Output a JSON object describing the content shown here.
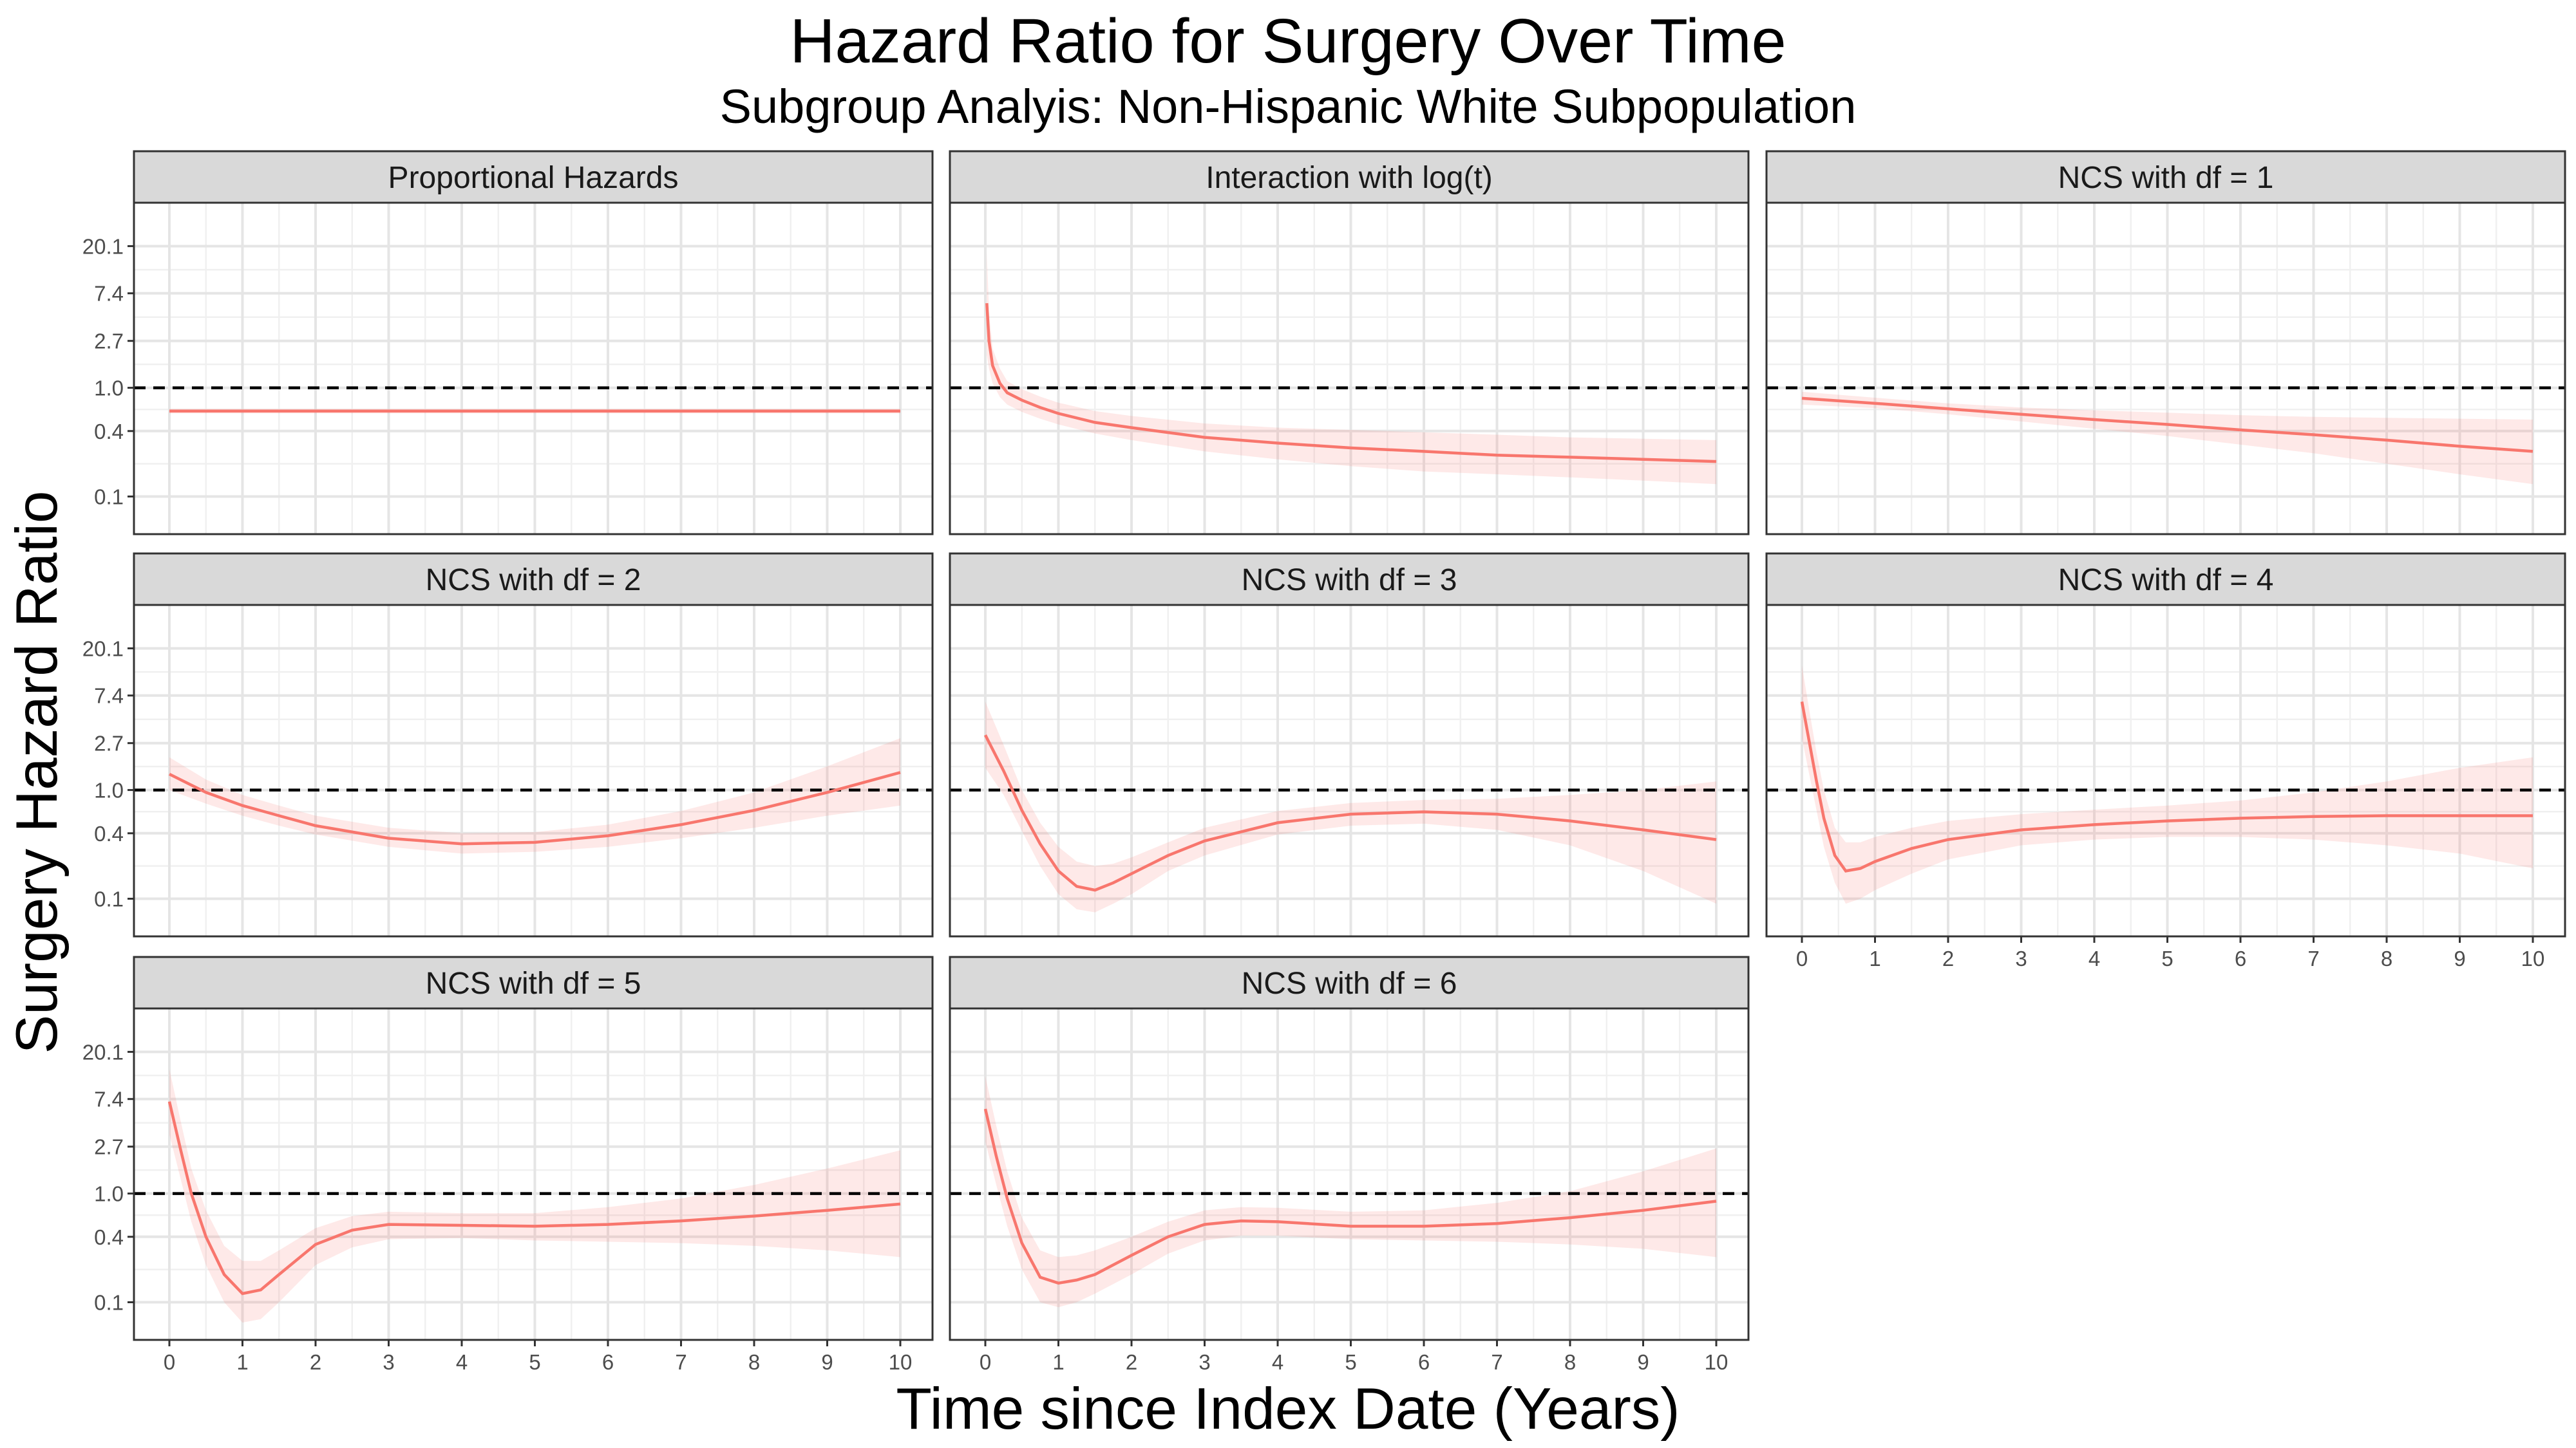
{
  "colors": {
    "curve": "#f8766d",
    "band": "#f8766d",
    "strip_fill": "#d9d9d9",
    "reference_line": "#000000",
    "grid": "#ebebeb"
  },
  "chart_data": {
    "type": "line",
    "title": "Hazard Ratio for Surgery Over Time",
    "subtitle": "Subgroup Analyis: Non-Hispanic White Subpopulation",
    "xlabel": "Time since Index Date (Years)",
    "ylabel": "Surgery Hazard Ratio",
    "xlim": [
      0,
      10
    ],
    "x_ticks": [
      0,
      1,
      2,
      3,
      4,
      5,
      6,
      7,
      8,
      9,
      10
    ],
    "y_scale": "log",
    "y_ticks": [
      0.1,
      0.4,
      1.0,
      2.7,
      7.4,
      20.1
    ],
    "y_tick_labels": [
      "0.1",
      "0.4",
      "1.0",
      "2.7",
      "7.4",
      "20.1"
    ],
    "reference_line": {
      "y": 1.0,
      "style": "dashed"
    },
    "grid": true,
    "legend": "none",
    "panels": [
      {
        "label": "Proportional Hazards",
        "x": [
          0,
          10
        ],
        "y": [
          0.61,
          0.61
        ],
        "lower": [
          0.58,
          0.58
        ],
        "upper": [
          0.64,
          0.64
        ]
      },
      {
        "label": "Interaction with log(t)",
        "x": [
          0.02,
          0.05,
          0.1,
          0.2,
          0.3,
          0.5,
          0.75,
          1,
          1.5,
          2,
          3,
          4,
          5,
          6,
          7,
          8,
          9,
          10
        ],
        "y": [
          6.0,
          2.7,
          1.6,
          1.1,
          0.9,
          0.77,
          0.66,
          0.58,
          0.48,
          0.43,
          0.35,
          0.31,
          0.28,
          0.26,
          0.24,
          0.23,
          0.22,
          0.21
        ],
        "lower": [
          2.0,
          1.5,
          1.1,
          0.82,
          0.7,
          0.6,
          0.52,
          0.46,
          0.38,
          0.33,
          0.26,
          0.22,
          0.19,
          0.17,
          0.16,
          0.15,
          0.14,
          0.13
        ],
        "upper": [
          18,
          5.0,
          2.3,
          1.5,
          1.15,
          0.97,
          0.83,
          0.73,
          0.61,
          0.55,
          0.47,
          0.43,
          0.41,
          0.39,
          0.37,
          0.35,
          0.34,
          0.33
        ]
      },
      {
        "label": "NCS with df = 1",
        "x": [
          0,
          1,
          2,
          3,
          4,
          5,
          6,
          7,
          8,
          9,
          10
        ],
        "y": [
          0.8,
          0.72,
          0.64,
          0.57,
          0.51,
          0.46,
          0.41,
          0.37,
          0.33,
          0.29,
          0.26
        ],
        "lower": [
          0.7,
          0.65,
          0.57,
          0.49,
          0.42,
          0.36,
          0.3,
          0.25,
          0.2,
          0.16,
          0.13
        ],
        "upper": [
          0.92,
          0.81,
          0.72,
          0.66,
          0.62,
          0.59,
          0.56,
          0.54,
          0.53,
          0.52,
          0.51
        ]
      },
      {
        "label": "NCS with df = 2",
        "x": [
          0,
          0.5,
          1,
          1.5,
          2,
          3,
          4,
          5,
          6,
          7,
          8,
          9,
          10
        ],
        "y": [
          1.4,
          0.95,
          0.72,
          0.58,
          0.47,
          0.36,
          0.32,
          0.33,
          0.38,
          0.48,
          0.65,
          0.95,
          1.45
        ],
        "lower": [
          1.0,
          0.75,
          0.58,
          0.47,
          0.39,
          0.3,
          0.26,
          0.27,
          0.3,
          0.36,
          0.45,
          0.58,
          0.72
        ],
        "upper": [
          2.0,
          1.25,
          0.9,
          0.72,
          0.58,
          0.45,
          0.4,
          0.41,
          0.48,
          0.64,
          0.95,
          1.65,
          3.0
        ]
      },
      {
        "label": "NCS with df = 3",
        "x": [
          0,
          0.25,
          0.5,
          0.75,
          1,
          1.25,
          1.5,
          1.75,
          2,
          2.5,
          3,
          4,
          5,
          6,
          7,
          8,
          9,
          10
        ],
        "y": [
          3.2,
          1.5,
          0.65,
          0.32,
          0.18,
          0.13,
          0.12,
          0.14,
          0.17,
          0.25,
          0.34,
          0.5,
          0.6,
          0.63,
          0.6,
          0.52,
          0.43,
          0.35
        ],
        "lower": [
          1.6,
          0.9,
          0.42,
          0.2,
          0.11,
          0.08,
          0.075,
          0.09,
          0.11,
          0.18,
          0.25,
          0.39,
          0.47,
          0.49,
          0.43,
          0.31,
          0.18,
          0.09
        ],
        "upper": [
          6.5,
          2.6,
          1.0,
          0.5,
          0.3,
          0.22,
          0.2,
          0.21,
          0.24,
          0.33,
          0.45,
          0.64,
          0.76,
          0.81,
          0.83,
          0.9,
          1.0,
          1.2
        ]
      },
      {
        "label": "NCS with df = 4",
        "x": [
          0,
          0.1,
          0.2,
          0.3,
          0.45,
          0.6,
          0.8,
          1,
          1.5,
          2,
          3,
          4,
          5,
          6,
          7,
          8,
          9,
          10
        ],
        "y": [
          6.5,
          2.8,
          1.2,
          0.55,
          0.25,
          0.18,
          0.19,
          0.22,
          0.29,
          0.35,
          0.43,
          0.48,
          0.52,
          0.55,
          0.57,
          0.58,
          0.58,
          0.58
        ],
        "lower": [
          3.0,
          1.4,
          0.65,
          0.3,
          0.14,
          0.09,
          0.1,
          0.12,
          0.17,
          0.23,
          0.31,
          0.35,
          0.37,
          0.37,
          0.35,
          0.31,
          0.26,
          0.19
        ],
        "upper": [
          14,
          5.5,
          2.2,
          1.0,
          0.45,
          0.33,
          0.33,
          0.37,
          0.45,
          0.52,
          0.6,
          0.66,
          0.72,
          0.8,
          0.95,
          1.2,
          1.6,
          2.0
        ]
      },
      {
        "label": "NCS with df = 5",
        "x": [
          0,
          0.15,
          0.3,
          0.5,
          0.75,
          1,
          1.25,
          1.5,
          2,
          2.5,
          3,
          4,
          5,
          6,
          7,
          8,
          9,
          10
        ],
        "y": [
          7.0,
          2.6,
          1.0,
          0.4,
          0.18,
          0.12,
          0.13,
          0.18,
          0.34,
          0.46,
          0.52,
          0.51,
          0.5,
          0.52,
          0.56,
          0.62,
          0.7,
          0.8
        ],
        "lower": [
          3.5,
          1.4,
          0.55,
          0.22,
          0.1,
          0.065,
          0.07,
          0.1,
          0.22,
          0.32,
          0.38,
          0.39,
          0.37,
          0.36,
          0.35,
          0.33,
          0.3,
          0.26
        ],
        "upper": [
          14,
          4.8,
          1.7,
          0.7,
          0.33,
          0.24,
          0.24,
          0.3,
          0.48,
          0.62,
          0.68,
          0.66,
          0.66,
          0.75,
          0.9,
          1.2,
          1.7,
          2.5
        ]
      },
      {
        "label": "NCS with df = 6",
        "x": [
          0,
          0.15,
          0.3,
          0.5,
          0.75,
          1,
          1.25,
          1.5,
          2,
          2.5,
          3,
          3.5,
          4,
          5,
          6,
          7,
          8,
          9,
          10
        ],
        "y": [
          6.0,
          2.2,
          0.9,
          0.35,
          0.17,
          0.15,
          0.16,
          0.18,
          0.27,
          0.4,
          0.52,
          0.56,
          0.55,
          0.5,
          0.5,
          0.53,
          0.6,
          0.7,
          0.85
        ],
        "lower": [
          3.0,
          1.2,
          0.5,
          0.2,
          0.1,
          0.09,
          0.1,
          0.12,
          0.18,
          0.28,
          0.37,
          0.41,
          0.41,
          0.38,
          0.37,
          0.36,
          0.34,
          0.31,
          0.26
        ],
        "upper": [
          12,
          4.2,
          1.6,
          0.6,
          0.3,
          0.26,
          0.27,
          0.3,
          0.4,
          0.55,
          0.7,
          0.75,
          0.74,
          0.68,
          0.7,
          0.82,
          1.05,
          1.6,
          2.6
        ]
      }
    ]
  }
}
